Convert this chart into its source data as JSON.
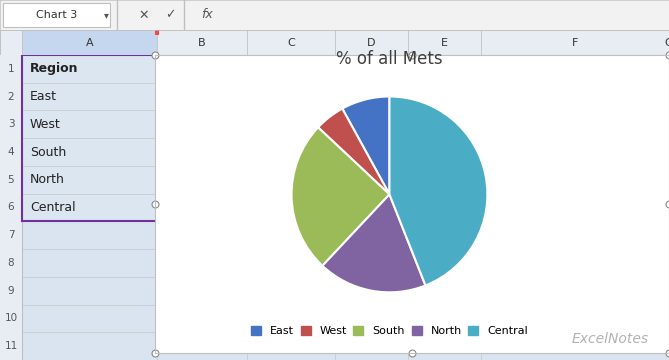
{
  "title": "% of all Mets",
  "labels": [
    "East",
    "West",
    "South",
    "North",
    "Central"
  ],
  "values": [
    8,
    5,
    25,
    18,
    44
  ],
  "colors": [
    "#4472C4",
    "#C0504D",
    "#9BBB59",
    "#8064A2",
    "#4BACC6"
  ],
  "start_angle": 90,
  "title_fontsize": 12,
  "legend_fontsize": 8,
  "watermark": "ExcelNotes",
  "sheet_bg": "#D9E4F0",
  "sheet_selected_bg": "#DCE6F1",
  "col_header_bg": "#E8EDF3",
  "white": "#FFFFFF",
  "toolbar_bg": "#F2F2F2",
  "border_color": "#BFBFBF",
  "purple_border": "#7030A0",
  "red_border": "#FF0000",
  "rows": [
    "Region",
    "East",
    "West",
    "South",
    "North",
    "Central"
  ],
  "col_labels": [
    "A",
    "B",
    "C",
    "D",
    "E",
    "F",
    "G"
  ],
  "row_nums": [
    "1",
    "2",
    "3",
    "4",
    "5",
    "6",
    "7",
    "8",
    "9",
    "10",
    "11"
  ]
}
